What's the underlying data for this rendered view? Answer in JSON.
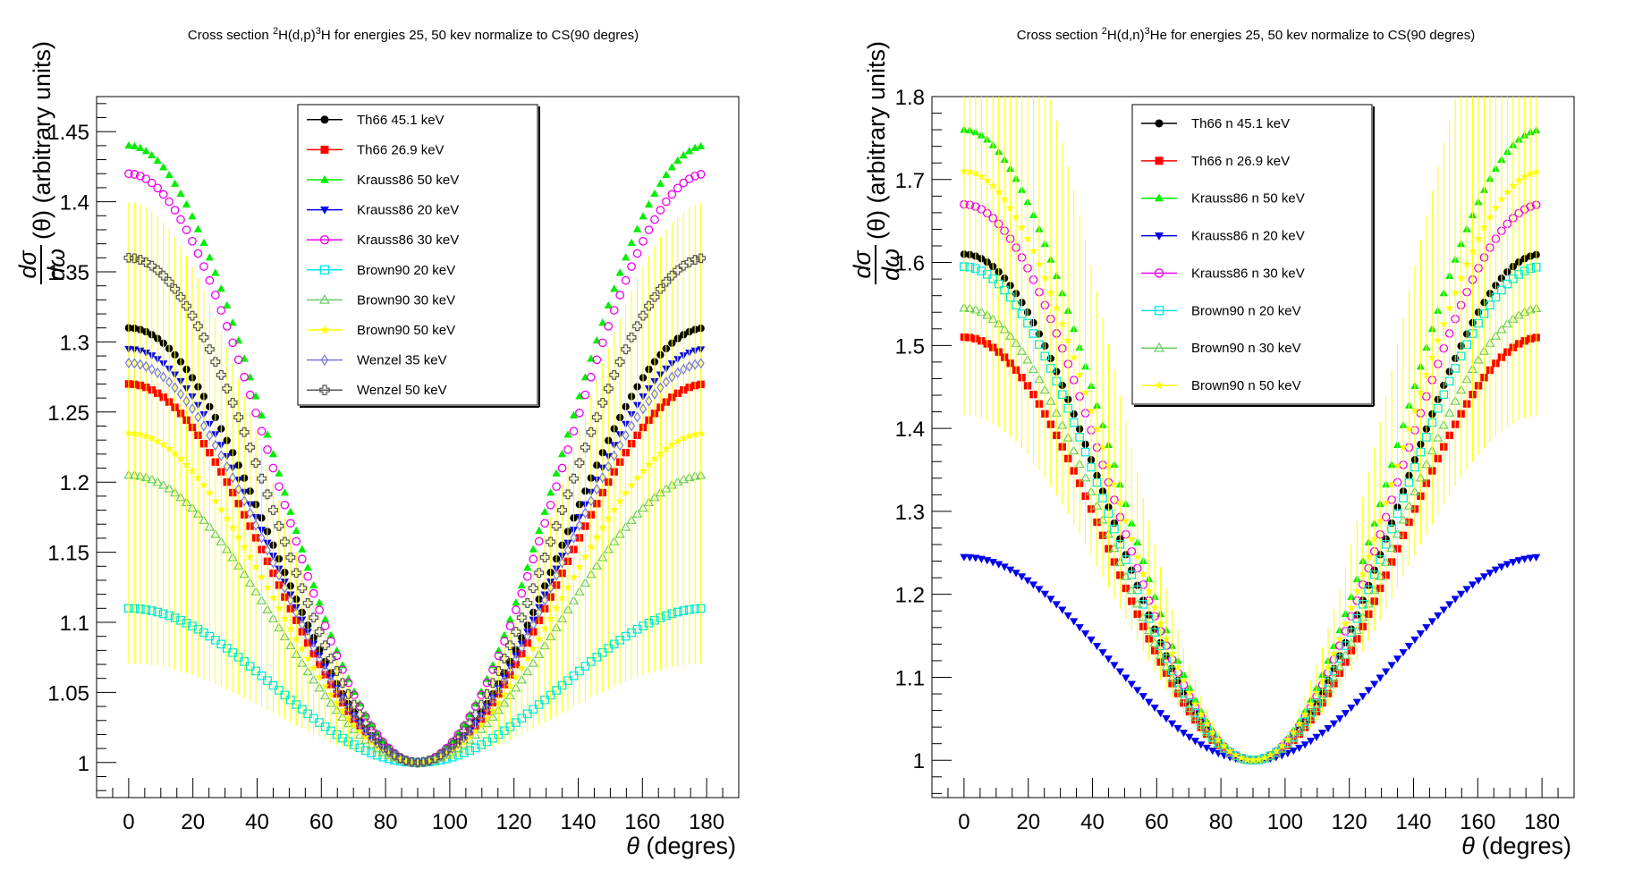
{
  "chart_data": [
    {
      "type": "scatter",
      "title": {
        "pre": "Cross section ",
        "sup1": "2",
        "mid": "H(d,p)",
        "sup2": "3",
        "post": "H for energies 25, 50 kev normalize to CS(90 degres)"
      },
      "xlabel": {
        "symbol": "θ",
        "text": " (degres)"
      },
      "ylabel": {
        "num": "dσ",
        "den": "dω",
        "text": " (θ) (arbitrary units)"
      },
      "xlim": [
        -10,
        190
      ],
      "ylim": [
        0.975,
        1.475
      ],
      "xticks": [
        0,
        20,
        40,
        60,
        80,
        100,
        120,
        140,
        160,
        180
      ],
      "yticks": [
        1,
        1.05,
        1.1,
        1.15,
        1.2,
        1.25,
        1.3,
        1.35,
        1.4,
        1.45
      ],
      "legend": "top-center",
      "series": [
        {
          "name": "Th66 45.1 keV",
          "color": "#000000",
          "marker": "circle",
          "peak": 1.31
        },
        {
          "name": "Th66 26.9 keV",
          "color": "#ff0000",
          "marker": "square",
          "peak": 1.27
        },
        {
          "name": "Krauss86 50 keV",
          "color": "#00ee00",
          "marker": "triangle-up",
          "peak": 1.44
        },
        {
          "name": "Krauss86 20 keV",
          "color": "#0000ee",
          "marker": "triangle-down",
          "peak": 1.295
        },
        {
          "name": "Krauss86 30 keV",
          "color": "#ee00ee",
          "marker": "open-circle",
          "peak": 1.42
        },
        {
          "name": "Brown90 20 keV",
          "color": "#00e5e5",
          "marker": "open-square",
          "peak": 1.11
        },
        {
          "name": "Brown90 30 keV",
          "color": "#66cc66",
          "marker": "open-triangle",
          "peak": 1.205
        },
        {
          "name": "Brown90 50 keV",
          "color": "#ffff00",
          "marker": "star",
          "peak": 1.235
        },
        {
          "name": "Wenzel 35 keV",
          "color": "#7777dd",
          "marker": "open-diamond",
          "peak": 1.285
        },
        {
          "name": "Wenzel 50 keV",
          "color": "#555555",
          "marker": "open-cross",
          "peak": 1.36
        }
      ]
    },
    {
      "type": "scatter",
      "title": {
        "pre": "Cross section ",
        "sup1": "2",
        "mid": "H(d,n)",
        "sup2": "3",
        "post": "He for energies 25, 50 kev normalize to CS(90 degres)"
      },
      "xlabel": {
        "symbol": "θ",
        "text": " (degres)"
      },
      "ylabel": {
        "num": "dσ",
        "den": "dω",
        "text": " (θ) (arbitrary units)"
      },
      "xlim": [
        -10,
        190
      ],
      "ylim": [
        0.955,
        1.8
      ],
      "xticks": [
        0,
        20,
        40,
        60,
        80,
        100,
        120,
        140,
        160,
        180
      ],
      "yticks": [
        1,
        1.1,
        1.2,
        1.3,
        1.4,
        1.5,
        1.6,
        1.7,
        1.8
      ],
      "legend": "top-center",
      "series": [
        {
          "name": "Th66 n 45.1 keV",
          "color": "#000000",
          "marker": "circle",
          "peak": 1.61
        },
        {
          "name": "Th66 n 26.9 keV",
          "color": "#ff0000",
          "marker": "square",
          "peak": 1.51
        },
        {
          "name": "Krauss86 n 50 keV",
          "color": "#00ee00",
          "marker": "triangle-up",
          "peak": 1.76
        },
        {
          "name": "Krauss86 n 20 keV",
          "color": "#0000ee",
          "marker": "triangle-down",
          "peak": 1.245
        },
        {
          "name": "Krauss86 n 30 keV",
          "color": "#ee00ee",
          "marker": "open-circle",
          "peak": 1.67
        },
        {
          "name": "Brown90 n 20 keV",
          "color": "#00e5e5",
          "marker": "open-square",
          "peak": 1.595
        },
        {
          "name": "Brown90 n 30 keV",
          "color": "#66cc66",
          "marker": "open-triangle",
          "peak": 1.545
        },
        {
          "name": "Brown90 n 50 keV",
          "color": "#ffff00",
          "marker": "star",
          "peak": 1.71
        }
      ]
    }
  ]
}
